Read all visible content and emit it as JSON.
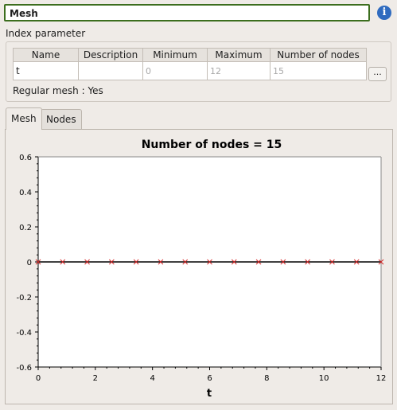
{
  "name_field": {
    "value": "Mesh"
  },
  "info_icon": "i",
  "group": {
    "title": "Index parameter",
    "columns": [
      "Name",
      "Description",
      "Minimum",
      "Maximum",
      "Number of nodes"
    ],
    "row": [
      "t",
      "",
      "0",
      "12",
      "15"
    ],
    "more_label": "...",
    "regular_mesh": "Regular mesh : Yes"
  },
  "tabs": [
    {
      "label": "Mesh",
      "active": true
    },
    {
      "label": "Nodes",
      "active": false
    }
  ],
  "chart_data": {
    "type": "scatter",
    "title": "Number of nodes = 15",
    "xlabel": "t",
    "ylabel": "",
    "xlim": [
      0,
      12
    ],
    "ylim": [
      -0.6,
      0.6
    ],
    "xticks": [
      "0",
      "2",
      "4",
      "6",
      "8",
      "10",
      "12"
    ],
    "yticks": [
      "0.6",
      "0.4",
      "0.2",
      "0",
      "-0.2",
      "-0.4",
      "-0.6"
    ],
    "grid": false,
    "marker_color": "#d62728",
    "line_color": "#000000",
    "x": [
      0,
      0.857,
      1.714,
      2.571,
      3.429,
      4.286,
      5.143,
      6,
      6.857,
      7.714,
      8.571,
      9.429,
      10.286,
      11.143,
      12
    ],
    "y": [
      0,
      0,
      0,
      0,
      0,
      0,
      0,
      0,
      0,
      0,
      0,
      0,
      0,
      0,
      0
    ]
  }
}
